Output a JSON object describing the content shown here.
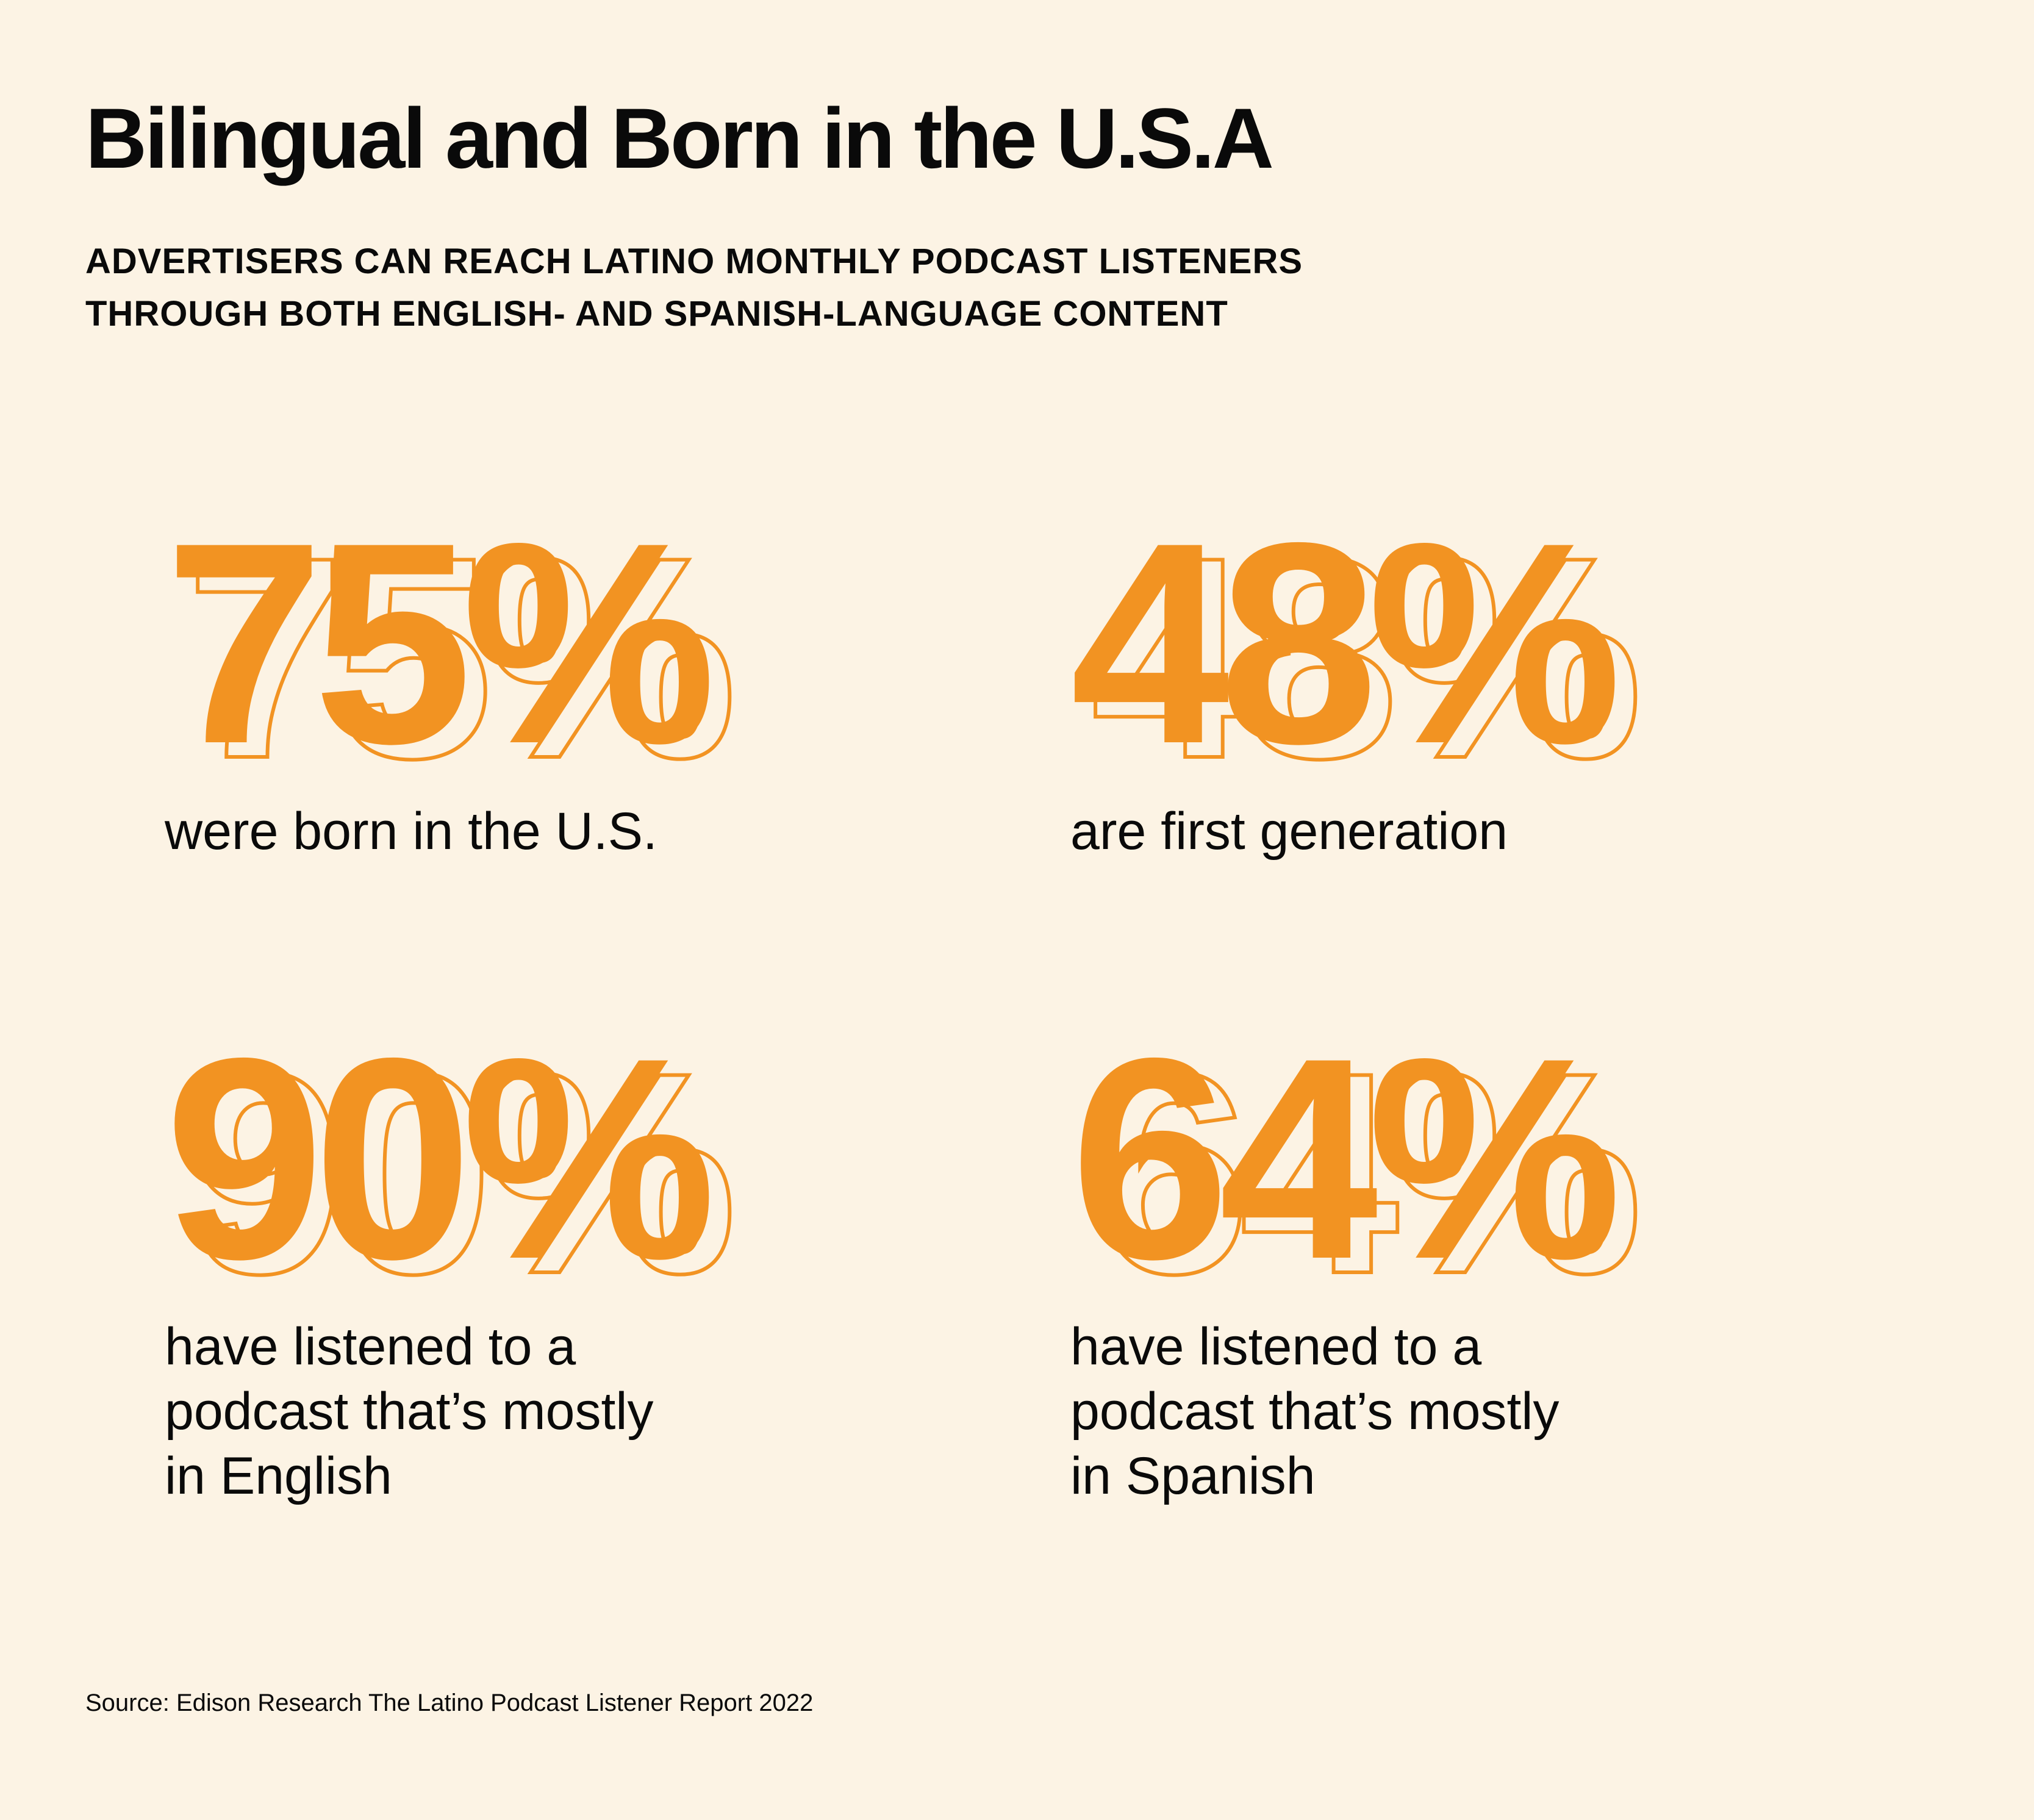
{
  "header": {
    "title": "Bilingual and Born in the U.S.A",
    "subtitle_lines": [
      "ADVERTISERS CAN REACH LATINO MONTHLY PODCAST LISTENERS",
      "THROUGH BOTH ENGLISH- AND SPANISH-LANGUAGE CONTENT"
    ]
  },
  "stats": [
    {
      "value": "75%",
      "lines": [
        "were born in the U.S."
      ]
    },
    {
      "value": "48%",
      "lines": [
        "are first generation"
      ]
    },
    {
      "value": "90%",
      "lines": [
        "have listened to a",
        "podcast that’s mostly",
        "in English"
      ]
    },
    {
      "value": "64%",
      "lines": [
        "have listened to a",
        "podcast that’s mostly",
        "in Spanish"
      ]
    }
  ],
  "footer": {
    "source": "Source: Edison Research The Latino Podcast Listener Report 2022"
  },
  "colors": {
    "background": "#fcf3e4",
    "accent": "#f29322",
    "text": "#0a0a0a"
  }
}
